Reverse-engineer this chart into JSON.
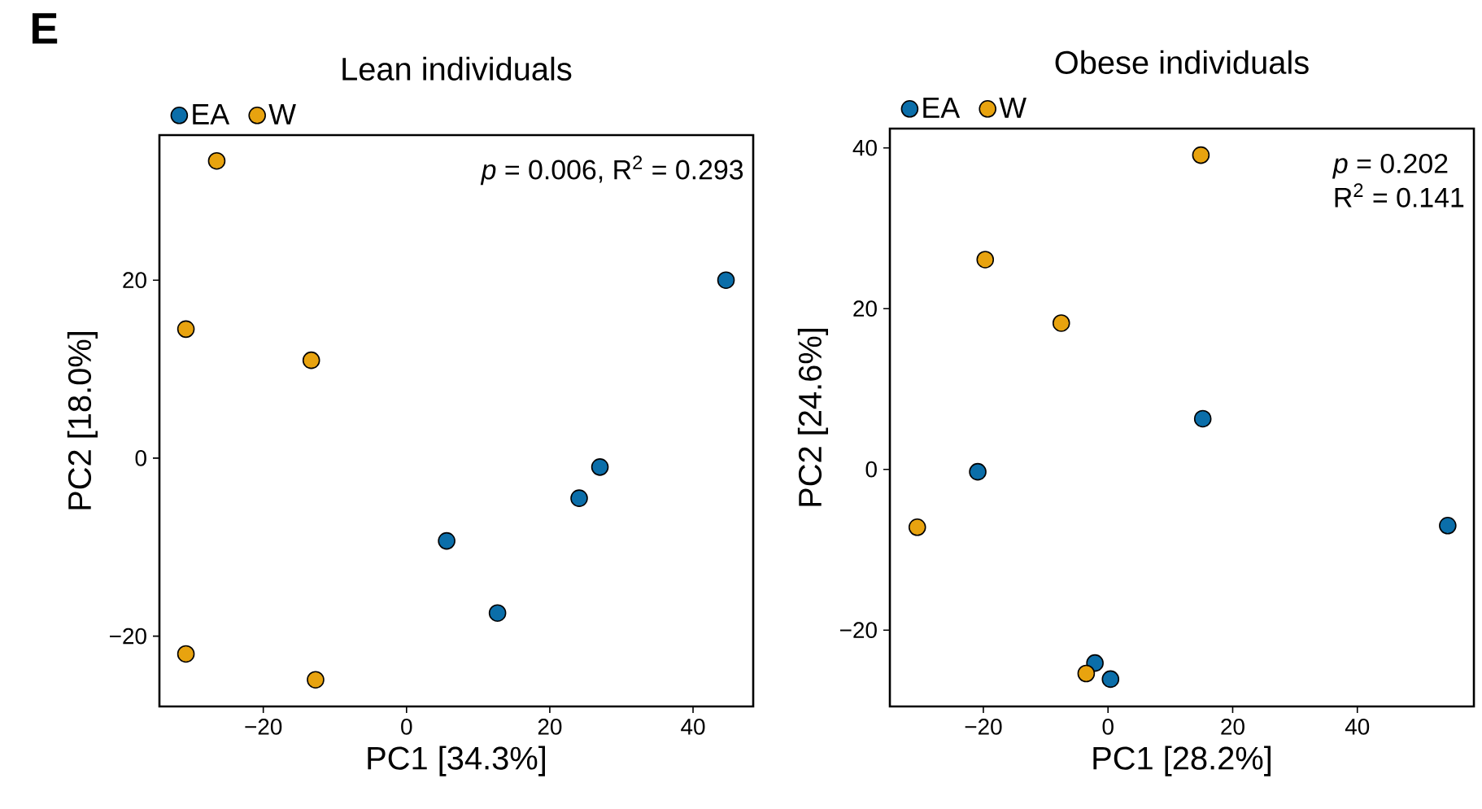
{
  "chart_data": [
    {
      "type": "scatter",
      "title": "Lean individuals",
      "xlabel": "PC1 [34.3%]",
      "ylabel": "PC2 [18.0%]",
      "annotations": [
        "E",
        "*p* = 0.006, R$^{2}$ = 0.293"
      ],
      "legend": "top left",
      "marker": "circle",
      "xlim": [
        -34.5,
        48.4
      ],
      "ylim": [
        -27.9,
        36.3
      ],
      "xticks": [
        {
          "value": -20,
          "label": "−20"
        },
        0,
        20,
        40
      ],
      "yticks": [
        {
          "value": -20,
          "label": "−20"
        },
        0,
        20
      ],
      "series": [
        {
          "name": "EA",
          "color": "#0b6ea9",
          "x": [
            44.6,
            27.0,
            24.1,
            5.6,
            12.7
          ],
          "values": [
            20.0,
            -1.0,
            -4.5,
            -9.3,
            -17.4
          ]
        },
        {
          "name": "W",
          "color": "#e8a30f",
          "x": [
            -26.5,
            -30.8,
            -13.3,
            -30.8,
            -12.7
          ],
          "values": [
            33.4,
            14.5,
            11.0,
            -22.0,
            -24.9
          ]
        }
      ]
    },
    {
      "type": "scatter",
      "title": "Obese individuals",
      "xlabel": "PC1 [28.2%]",
      "ylabel": "PC2 [24.6%]",
      "annotations": [
        "*p* = 0.202",
        "R$^{2}$ = 0.141"
      ],
      "legend": "top left",
      "marker": "circle",
      "xlim": [
        -35.0,
        58.7
      ],
      "ylim": [
        -29.5,
        42.4
      ],
      "xticks": [
        {
          "value": -20,
          "label": "−20"
        },
        0,
        20,
        40
      ],
      "yticks": [
        {
          "value": -20,
          "label": "−20"
        },
        0,
        20,
        40
      ],
      "series": [
        {
          "name": "EA",
          "color": "#0b6ea9",
          "x": [
            15.2,
            -20.9,
            54.5,
            -2.1,
            0.4
          ],
          "values": [
            6.3,
            -0.3,
            -7.0,
            -24.1,
            -26.1
          ]
        },
        {
          "name": "W",
          "color": "#e8a30f",
          "x": [
            14.9,
            -19.7,
            -7.5,
            -30.6,
            -3.5
          ],
          "values": [
            39.1,
            26.1,
            18.2,
            -7.2,
            -25.4
          ]
        }
      ]
    }
  ]
}
